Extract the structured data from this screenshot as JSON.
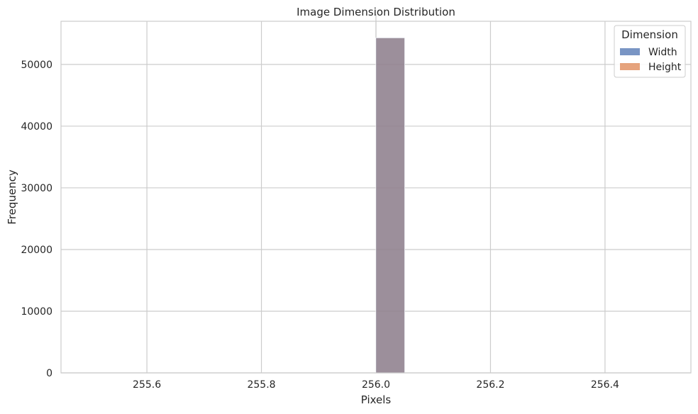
{
  "chart_data": {
    "type": "bar",
    "title": "Image Dimension Distribution",
    "xlabel": "Pixels",
    "ylabel": "Frequency",
    "xlim": [
      255.45,
      256.55
    ],
    "ylim": [
      0,
      57000
    ],
    "x_ticks": [
      "255.6",
      "255.8",
      "256.0",
      "256.2",
      "256.4"
    ],
    "x_tick_values": [
      255.6,
      255.8,
      256.0,
      256.2,
      256.4
    ],
    "y_ticks": [
      "0",
      "10000",
      "20000",
      "30000",
      "40000",
      "50000"
    ],
    "y_tick_values": [
      0,
      10000,
      20000,
      30000,
      40000,
      50000
    ],
    "grid": true,
    "legend": {
      "title": "Dimension",
      "placement": "top-right",
      "entries": [
        {
          "label": "Width",
          "color": "#4c72b0"
        },
        {
          "label": "Height",
          "color": "#dd8452"
        }
      ]
    },
    "series": [
      {
        "name": "Width",
        "bins": [
          {
            "x0": 256.0,
            "x1": 256.05,
            "count": 54300
          }
        ]
      },
      {
        "name": "Height",
        "bins": [
          {
            "x0": 256.0,
            "x1": 256.05,
            "count": 54300
          }
        ]
      }
    ],
    "overlap_color": "#7d83a0"
  }
}
